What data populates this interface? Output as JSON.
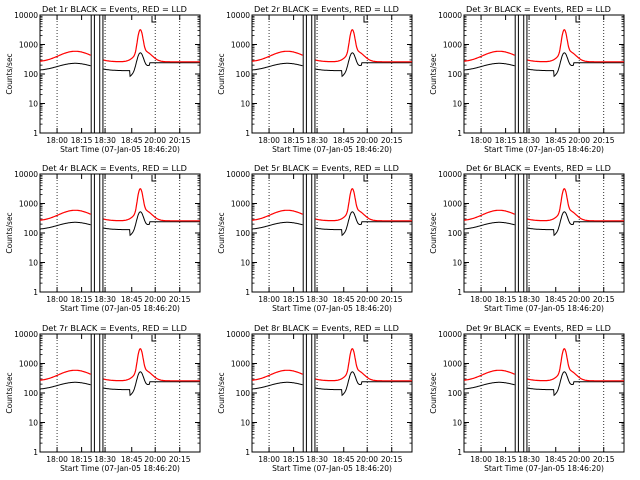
{
  "chart_data": [
    {
      "type": "line",
      "title": "Det 1r BLACK = Events, RED = LLD",
      "xlabel": "Start Time (07-Jan-05 18:46:20)",
      "ylabel": "Counts/sec",
      "xticks": [
        "18:00",
        "18:15",
        "18:30",
        "18:45",
        "20:00",
        "20:15"
      ],
      "yticks": [
        "1",
        "10",
        "100",
        "1000",
        "10000"
      ],
      "ylim": [
        1,
        10000
      ],
      "yscale": "log",
      "series": [
        {
          "name": "Events",
          "color": "#000000"
        },
        {
          "name": "LLD",
          "color": "#ff0000"
        }
      ]
    },
    {
      "type": "line",
      "title": "Det 2r BLACK = Events, RED = LLD",
      "xlabel": "Start Time (07-Jan-05 18:46:20)",
      "ylabel": "Counts/sec",
      "xticks": [
        "18:00",
        "18:15",
        "18:30",
        "18:45",
        "20:00",
        "20:15"
      ],
      "yticks": [
        "1",
        "10",
        "100",
        "1000",
        "10000"
      ],
      "ylim": [
        1,
        10000
      ],
      "yscale": "log",
      "series": [
        {
          "name": "Events",
          "color": "#000000"
        },
        {
          "name": "LLD",
          "color": "#ff0000"
        }
      ]
    },
    {
      "type": "line",
      "title": "Det 3r BLACK = Events, RED = LLD",
      "xlabel": "Start Time (07-Jan-05 18:46:20)",
      "ylabel": "Counts/sec",
      "xticks": [
        "18:00",
        "18:15",
        "18:30",
        "18:45",
        "20:00",
        "20:15"
      ],
      "yticks": [
        "1",
        "10",
        "100",
        "1000",
        "10000"
      ],
      "ylim": [
        1,
        10000
      ],
      "yscale": "log",
      "series": [
        {
          "name": "Events",
          "color": "#000000"
        },
        {
          "name": "LLD",
          "color": "#ff0000"
        }
      ]
    },
    {
      "type": "line",
      "title": "Det 4r BLACK = Events, RED = LLD",
      "xlabel": "Start Time (07-Jan-05 18:46:20)",
      "ylabel": "Counts/sec",
      "xticks": [
        "18:00",
        "18:15",
        "18:30",
        "18:45",
        "20:00",
        "20:15"
      ],
      "yticks": [
        "1",
        "10",
        "100",
        "1000",
        "10000"
      ],
      "ylim": [
        1,
        10000
      ],
      "yscale": "log",
      "series": [
        {
          "name": "Events",
          "color": "#000000"
        },
        {
          "name": "LLD",
          "color": "#ff0000"
        }
      ]
    },
    {
      "type": "line",
      "title": "Det 5r BLACK = Events, RED = LLD",
      "xlabel": "Start Time (07-Jan-05 18:46:20)",
      "ylabel": "Counts/sec",
      "xticks": [
        "18:00",
        "18:15",
        "18:30",
        "18:45",
        "20:00",
        "20:15"
      ],
      "yticks": [
        "1",
        "10",
        "100",
        "1000",
        "10000"
      ],
      "ylim": [
        1,
        10000
      ],
      "yscale": "log",
      "series": [
        {
          "name": "Events",
          "color": "#000000"
        },
        {
          "name": "LLD",
          "color": "#ff0000"
        }
      ]
    },
    {
      "type": "line",
      "title": "Det 6r BLACK = Events, RED = LLD",
      "xlabel": "Start Time (07-Jan-05 18:46:20)",
      "ylabel": "Counts/sec",
      "xticks": [
        "18:00",
        "18:15",
        "18:30",
        "18:45",
        "20:00",
        "20:15"
      ],
      "yticks": [
        "1",
        "10",
        "100",
        "1000",
        "10000"
      ],
      "ylim": [
        1,
        10000
      ],
      "yscale": "log",
      "series": [
        {
          "name": "Events",
          "color": "#000000"
        },
        {
          "name": "LLD",
          "color": "#ff0000"
        }
      ]
    },
    {
      "type": "line",
      "title": "Det 7r BLACK = Events, RED = LLD",
      "xlabel": "Start Time (07-Jan-05 18:46:20)",
      "ylabel": "Counts/sec",
      "xticks": [
        "18:00",
        "18:15",
        "18:30",
        "18:45",
        "20:00",
        "20:15"
      ],
      "yticks": [
        "1",
        "10",
        "100",
        "1000",
        "10000"
      ],
      "ylim": [
        1,
        10000
      ],
      "yscale": "log",
      "series": [
        {
          "name": "Events",
          "color": "#000000"
        },
        {
          "name": "LLD",
          "color": "#ff0000"
        }
      ]
    },
    {
      "type": "line",
      "title": "Det 8r BLACK = Events, RED = LLD",
      "xlabel": "Start Time (07-Jan-05 18:46:20)",
      "ylabel": "Counts/sec",
      "xticks": [
        "18:00",
        "18:15",
        "18:30",
        "18:45",
        "20:00",
        "20:15"
      ],
      "yticks": [
        "1",
        "10",
        "100",
        "1000",
        "10000"
      ],
      "ylim": [
        1,
        10000
      ],
      "yscale": "log",
      "series": [
        {
          "name": "Events",
          "color": "#000000"
        },
        {
          "name": "LLD",
          "color": "#ff0000"
        }
      ]
    },
    {
      "type": "line",
      "title": "Det 9r BLACK = Events, RED = LLD",
      "xlabel": "Start Time (07-Jan-05 18:46:20)",
      "ylabel": "Counts/sec",
      "xticks": [
        "18:00",
        "18:15",
        "18:30",
        "18:45",
        "20:00",
        "20:15"
      ],
      "yticks": [
        "1",
        "10",
        "100",
        "1000",
        "10000"
      ],
      "ylim": [
        1,
        10000
      ],
      "yscale": "log",
      "series": [
        {
          "name": "Events",
          "color": "#000000"
        },
        {
          "name": "LLD",
          "color": "#ff0000"
        }
      ]
    }
  ]
}
